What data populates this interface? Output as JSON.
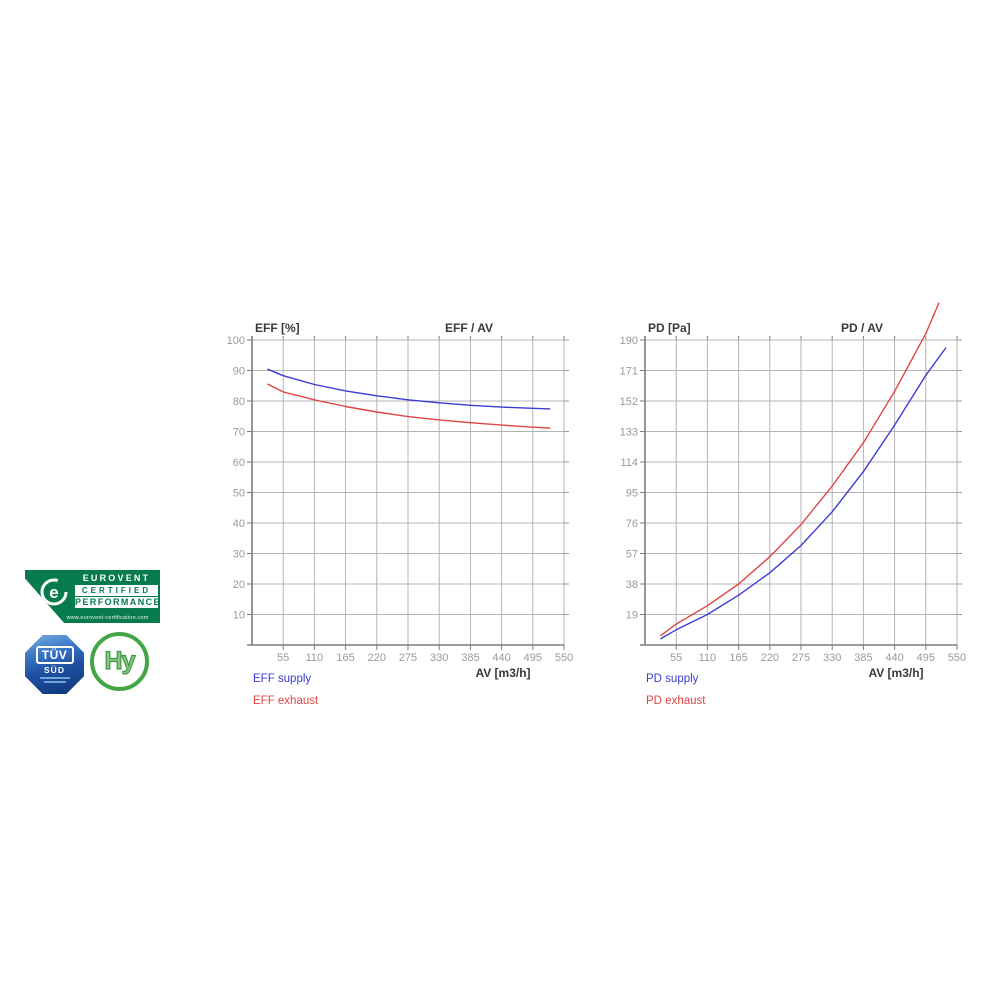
{
  "logos": {
    "eurovent": {
      "line1": "EUROVENT",
      "line2": "CERTIFIED",
      "line3": "PERFORMANCE",
      "url": "www.eurovent-certification.com",
      "emblem": "e",
      "green": "#077a4e"
    },
    "tuv": {
      "line1": "TÜV",
      "line2": "SÜD"
    },
    "hy": {
      "label": "Hy"
    }
  },
  "chart_data": [
    {
      "type": "line",
      "title": "EFF / AV",
      "ylabel": "EFF [%]",
      "xlabel": "AV [m3/h]",
      "xlim": [
        0,
        550
      ],
      "ylim": [
        0,
        100
      ],
      "grid": true,
      "legend_position": "below-left",
      "xticks": [
        55,
        110,
        165,
        220,
        275,
        330,
        385,
        440,
        495,
        550
      ],
      "yticks": [
        10,
        20,
        30,
        40,
        50,
        60,
        70,
        80,
        90,
        100
      ],
      "series": [
        {
          "name": "EFF supply",
          "color": "#3c3cd4",
          "x": [
            28,
            55,
            110,
            165,
            220,
            275,
            330,
            385,
            440,
            495,
            525
          ],
          "y": [
            90.4,
            88.3,
            85.4,
            83.3,
            81.7,
            80.4,
            79.4,
            78.6,
            78.0,
            77.6,
            77.4
          ]
        },
        {
          "name": "EFF exhaust",
          "color": "#e04545",
          "x": [
            28,
            55,
            110,
            165,
            220,
            275,
            330,
            385,
            440,
            495,
            525
          ],
          "y": [
            85.5,
            83.0,
            80.4,
            78.2,
            76.4,
            74.9,
            73.8,
            72.9,
            72.1,
            71.4,
            71.1
          ]
        }
      ]
    },
    {
      "type": "line",
      "title": "PD / AV",
      "ylabel": "PD [Pa]",
      "xlabel": "AV [m3/h]",
      "xlim": [
        0,
        550
      ],
      "ylim": [
        0,
        190
      ],
      "grid": true,
      "legend_position": "below-left",
      "xticks": [
        55,
        110,
        165,
        220,
        275,
        330,
        385,
        440,
        495,
        550
      ],
      "yticks": [
        19,
        38,
        57,
        76,
        95,
        114,
        133,
        152,
        171,
        190
      ],
      "series": [
        {
          "name": "PD supply",
          "color": "#3c3cd4",
          "x": [
            28,
            55,
            110,
            165,
            220,
            275,
            330,
            385,
            440,
            495,
            530
          ],
          "y": [
            4,
            9.5,
            19,
            31,
            45,
            62,
            83,
            108,
            137,
            168,
            185
          ]
        },
        {
          "name": "PD exhaust",
          "color": "#e04545",
          "x": [
            28,
            55,
            110,
            165,
            220,
            275,
            330,
            385,
            440,
            495,
            518
          ],
          "y": [
            6,
            13,
            24.5,
            38,
            55,
            75,
            99,
            126,
            158,
            194,
            213
          ]
        }
      ]
    }
  ]
}
